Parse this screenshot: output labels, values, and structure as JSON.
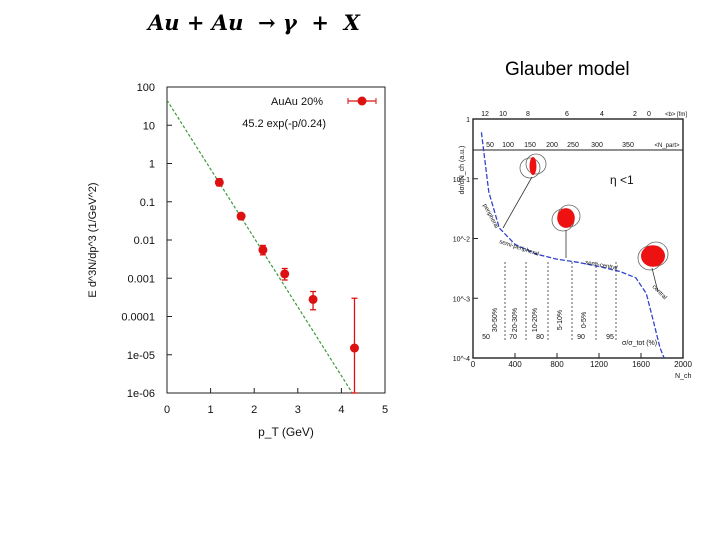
{
  "slide": {
    "title": "Au + Au  → γ  +  X",
    "right_caption": "Glauber model"
  },
  "chart_data": [
    {
      "type": "scatter",
      "xlabel": "p_T (GeV)",
      "ylabel": "E d^3N/dp^3  (1/GeV^2)",
      "xlim": [
        0,
        5
      ],
      "ylim": [
        1e-06,
        100
      ],
      "yscale": "log",
      "x_ticks": [
        "0",
        "1",
        "2",
        "3",
        "4",
        "5"
      ],
      "y_ticks": [
        "1e-06",
        "1e-05",
        "0.0001",
        "0.001",
        "0.01",
        "0.1",
        "1",
        "10",
        "100"
      ],
      "legend": {
        "position": "top-right",
        "marker_label": "AuAu 20%",
        "fit_label": "45.2 exp(-p/0.24)"
      },
      "fit": {
        "amplitude": 45.2,
        "slope": 0.24,
        "color": "#3a9a3a"
      },
      "marker_color": "#dd1111",
      "series": [
        {
          "name": "AuAu 20%",
          "x": [
            1.2,
            1.7,
            2.2,
            2.7,
            3.35,
            4.3
          ],
          "y": [
            0.32,
            0.042,
            0.0055,
            0.0013,
            0.00028,
            1.5e-05
          ],
          "y_low": [
            0.26,
            0.034,
            0.0041,
            0.0009,
            0.00015,
            1e-06
          ],
          "y_high": [
            0.4,
            0.05,
            0.0072,
            0.0018,
            0.00045,
            0.0003
          ]
        }
      ]
    },
    {
      "type": "line",
      "xlabel": "N_ch",
      "ylabel": "dσ/dN_ch (a.u.)",
      "xlim": [
        0,
        2000
      ],
      "ylim": [
        0.0001,
        1
      ],
      "yscale": "log",
      "x_ticks": [
        "0",
        "400",
        "800",
        "1200",
        "1600",
        "2000"
      ],
      "y_ticks": [
        "10^-4",
        "10^-3",
        "10^-2",
        "10^-1",
        "1"
      ],
      "top_axis1_label": "<b> [fm]",
      "top_axis1_ticks": [
        "12",
        "10",
        "8",
        "6",
        "4",
        "2",
        "0"
      ],
      "top_axis2_label": "<N_part>",
      "top_axis2_ticks": [
        "50",
        "100",
        "150",
        "200",
        "250",
        "300",
        "350"
      ],
      "eta_label": "η <1",
      "region_labels": [
        "peripheral",
        "semi-peripheral",
        "semi-central",
        "central"
      ],
      "centrality_bins": [
        "30-50%",
        "20-30%",
        "10-20%",
        "5-10%",
        "0-5%"
      ],
      "npart_bins": [
        "50",
        "70",
        "80",
        "90",
        "95"
      ],
      "bottom_caption": "σ/σ_tot (%)",
      "curve": {
        "x": [
          80,
          150,
          250,
          400,
          600,
          800,
          1000,
          1200,
          1400,
          1550,
          1650,
          1720,
          1780,
          1820
        ],
        "y": [
          0.6,
          0.06,
          0.015,
          0.008,
          0.0055,
          0.0045,
          0.004,
          0.0034,
          0.0028,
          0.0022,
          0.0012,
          0.0004,
          0.00015,
          0.0001
        ]
      },
      "curve_color": "#3344cc"
    }
  ]
}
